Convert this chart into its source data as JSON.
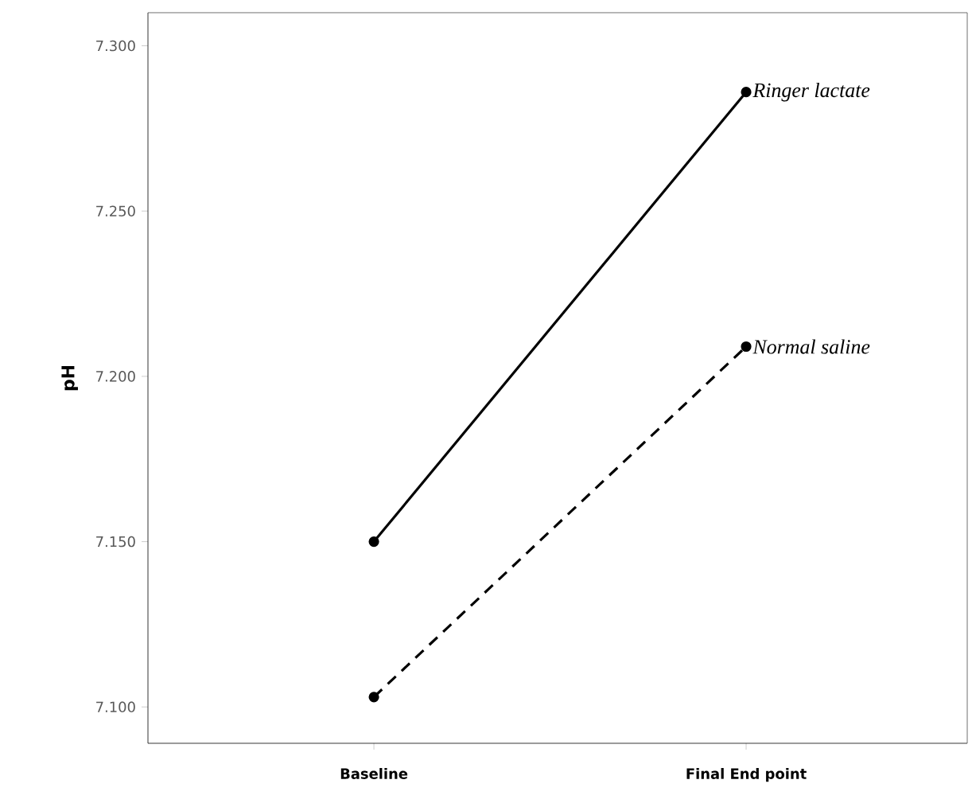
{
  "chart_data": {
    "type": "line",
    "ylabel": "pH",
    "categories": [
      "Baseline",
      "Final End point"
    ],
    "series": [
      {
        "name": "Ringer lactate",
        "color": "#000000",
        "values": [
          7.15,
          7.286
        ],
        "line_style": "solid"
      },
      {
        "name": "Normal saline",
        "color": "#000000",
        "values": [
          7.103,
          7.209
        ],
        "line_style": "dashed"
      }
    ],
    "ylim": [
      7.089,
      7.31
    ],
    "yticks": [
      {
        "value": 7.1,
        "label": "7.100"
      },
      {
        "value": 7.15,
        "label": "7.150"
      },
      {
        "value": 7.2,
        "label": "7.200"
      },
      {
        "value": 7.25,
        "label": "7.250"
      },
      {
        "value": 7.3,
        "label": "7.300"
      }
    ],
    "marker": "circle",
    "grid": false,
    "legend": false
  }
}
